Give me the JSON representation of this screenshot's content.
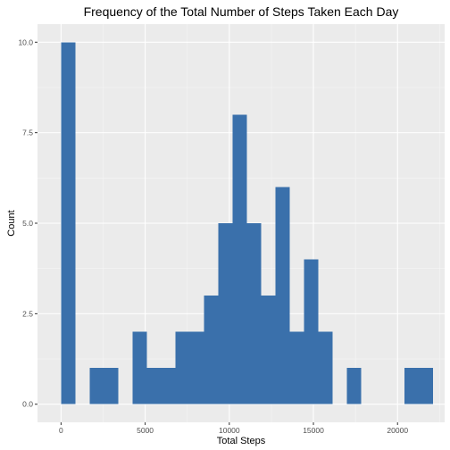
{
  "chart_data": {
    "type": "bar",
    "title": "Frequency of the Total Number of Steps Taken Each Day",
    "xlabel": "Total Steps",
    "ylabel": "Count",
    "xlim": [
      -1400,
      22800
    ],
    "ylim": [
      -0.5,
      10.5
    ],
    "bin_width": 850,
    "bins": [
      {
        "start": 0,
        "end": 850,
        "count": 10
      },
      {
        "start": 1700,
        "end": 2550,
        "count": 1
      },
      {
        "start": 2550,
        "end": 3400,
        "count": 1
      },
      {
        "start": 4250,
        "end": 5100,
        "count": 2
      },
      {
        "start": 5100,
        "end": 5950,
        "count": 1
      },
      {
        "start": 5950,
        "end": 6800,
        "count": 1
      },
      {
        "start": 6800,
        "end": 7650,
        "count": 2
      },
      {
        "start": 7650,
        "end": 8500,
        "count": 2
      },
      {
        "start": 8500,
        "end": 9350,
        "count": 3
      },
      {
        "start": 9350,
        "end": 10200,
        "count": 5
      },
      {
        "start": 10200,
        "end": 11050,
        "count": 8
      },
      {
        "start": 11050,
        "end": 11900,
        "count": 5
      },
      {
        "start": 11900,
        "end": 12750,
        "count": 3
      },
      {
        "start": 12750,
        "end": 13600,
        "count": 6
      },
      {
        "start": 13600,
        "end": 14450,
        "count": 2
      },
      {
        "start": 14450,
        "end": 15300,
        "count": 4
      },
      {
        "start": 15300,
        "end": 16150,
        "count": 2
      },
      {
        "start": 17000,
        "end": 17850,
        "count": 1
      },
      {
        "start": 20400,
        "end": 21250,
        "count": 1
      },
      {
        "start": 21250,
        "end": 22100,
        "count": 1
      }
    ],
    "x_ticks": [
      {
        "value": 0,
        "label": "0"
      },
      {
        "value": 5000,
        "label": "5000"
      },
      {
        "value": 10000,
        "label": "10000"
      },
      {
        "value": 15000,
        "label": "15000"
      },
      {
        "value": 20000,
        "label": "20000"
      }
    ],
    "y_ticks": [
      {
        "value": 0,
        "label": "0.0"
      },
      {
        "value": 2.5,
        "label": "2.5"
      },
      {
        "value": 5,
        "label": "5.0"
      },
      {
        "value": 7.5,
        "label": "7.5"
      },
      {
        "value": 10,
        "label": "10.0"
      }
    ],
    "grid": true,
    "colors": {
      "bar_fill": "#3A70AB",
      "panel_background": "#EBEBEB",
      "grid_major": "#FFFFFF",
      "grid_minor": "#F5F5F5",
      "tick_label": "#4D4D4D"
    }
  }
}
